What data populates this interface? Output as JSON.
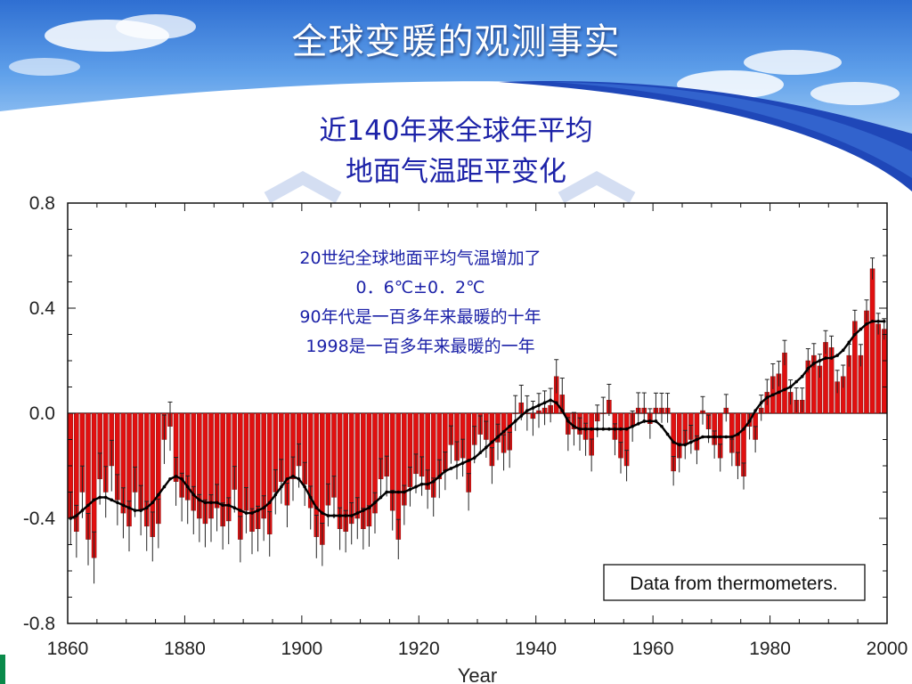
{
  "slide": {
    "title": "全球变暖的观测事实",
    "subtitle_line1": "近140年来全球年平均",
    "subtitle_line2": "地面气温距平变化"
  },
  "colors": {
    "bar": "#e01010",
    "bar_edge": "#7a0000",
    "smooth_line": "#000000",
    "note_text": "#1c22a8",
    "header_blue": "#1f47b8"
  },
  "chart_data": {
    "type": "bar",
    "title": "",
    "xlabel": "Year",
    "ylabel": "",
    "xlim": [
      1860,
      2000
    ],
    "ylim": [
      -0.8,
      0.8
    ],
    "x_ticks": [
      "1860",
      "1880",
      "1900",
      "1920",
      "1940",
      "1960",
      "1980",
      "2000"
    ],
    "y_ticks": [
      "0.8",
      "0.4",
      "0.0",
      "-0.4",
      "-0.8"
    ],
    "years": [
      1861,
      1862,
      1863,
      1864,
      1865,
      1866,
      1867,
      1868,
      1869,
      1870,
      1871,
      1872,
      1873,
      1874,
      1875,
      1876,
      1877,
      1878,
      1879,
      1880,
      1881,
      1882,
      1883,
      1884,
      1885,
      1886,
      1887,
      1888,
      1889,
      1890,
      1891,
      1892,
      1893,
      1894,
      1895,
      1896,
      1897,
      1898,
      1899,
      1900,
      1901,
      1902,
      1903,
      1904,
      1905,
      1906,
      1907,
      1908,
      1909,
      1910,
      1911,
      1912,
      1913,
      1914,
      1915,
      1916,
      1917,
      1918,
      1919,
      1920,
      1921,
      1922,
      1923,
      1924,
      1925,
      1926,
      1927,
      1928,
      1929,
      1930,
      1931,
      1932,
      1933,
      1934,
      1935,
      1936,
      1937,
      1938,
      1939,
      1940,
      1941,
      1942,
      1943,
      1944,
      1945,
      1946,
      1947,
      1948,
      1949,
      1950,
      1951,
      1952,
      1953,
      1954,
      1955,
      1956,
      1957,
      1958,
      1959,
      1960,
      1961,
      1962,
      1963,
      1964,
      1965,
      1966,
      1967,
      1968,
      1969,
      1970,
      1971,
      1972,
      1973,
      1974,
      1975,
      1976,
      1977,
      1978,
      1979,
      1980,
      1981,
      1982,
      1983,
      1984,
      1985,
      1986,
      1987,
      1988,
      1989,
      1990,
      1991,
      1992,
      1993,
      1994,
      1995,
      1996,
      1997,
      1998,
      1999,
      2000
    ],
    "values": [
      -0.4,
      -0.45,
      -0.3,
      -0.48,
      -0.55,
      -0.25,
      -0.3,
      -0.2,
      -0.33,
      -0.38,
      -0.43,
      -0.3,
      -0.37,
      -0.43,
      -0.47,
      -0.42,
      -0.1,
      -0.05,
      -0.26,
      -0.32,
      -0.33,
      -0.37,
      -0.4,
      -0.42,
      -0.4,
      -0.36,
      -0.43,
      -0.41,
      -0.29,
      -0.48,
      -0.37,
      -0.45,
      -0.44,
      -0.4,
      -0.46,
      -0.3,
      -0.26,
      -0.35,
      -0.25,
      -0.2,
      -0.27,
      -0.36,
      -0.47,
      -0.5,
      -0.35,
      -0.32,
      -0.44,
      -0.45,
      -0.42,
      -0.4,
      -0.44,
      -0.43,
      -0.38,
      -0.25,
      -0.24,
      -0.37,
      -0.48,
      -0.35,
      -0.28,
      -0.23,
      -0.24,
      -0.29,
      -0.32,
      -0.25,
      -0.22,
      -0.12,
      -0.18,
      -0.17,
      -0.3,
      -0.12,
      -0.08,
      -0.1,
      -0.2,
      -0.11,
      -0.15,
      -0.14,
      0.0,
      0.04,
      0.0,
      -0.02,
      0.01,
      0.02,
      0.03,
      0.14,
      0.07,
      -0.08,
      -0.06,
      -0.08,
      -0.1,
      -0.16,
      -0.03,
      0.0,
      0.05,
      -0.1,
      -0.17,
      -0.2,
      -0.05,
      0.02,
      0.02,
      -0.04,
      0.02,
      0.02,
      0.02,
      -0.22,
      -0.17,
      -0.12,
      -0.1,
      -0.14,
      0.01,
      -0.06,
      -0.12,
      -0.17,
      0.02,
      -0.15,
      -0.2,
      -0.24,
      -0.05,
      -0.1,
      0.02,
      0.08,
      0.14,
      0.15,
      0.23,
      0.08,
      0.05,
      0.05,
      0.2,
      0.22,
      0.18,
      0.27,
      0.25,
      0.12,
      0.14,
      0.22,
      0.35,
      0.22,
      0.39,
      0.55,
      0.34,
      0.32
    ],
    "smoothed": [
      -0.4,
      -0.39,
      -0.37,
      -0.35,
      -0.33,
      -0.32,
      -0.32,
      -0.33,
      -0.34,
      -0.35,
      -0.36,
      -0.37,
      -0.37,
      -0.36,
      -0.34,
      -0.31,
      -0.28,
      -0.25,
      -0.24,
      -0.25,
      -0.28,
      -0.31,
      -0.33,
      -0.34,
      -0.34,
      -0.34,
      -0.35,
      -0.35,
      -0.36,
      -0.37,
      -0.38,
      -0.38,
      -0.37,
      -0.36,
      -0.34,
      -0.31,
      -0.28,
      -0.25,
      -0.24,
      -0.25,
      -0.28,
      -0.32,
      -0.36,
      -0.38,
      -0.39,
      -0.39,
      -0.39,
      -0.39,
      -0.39,
      -0.38,
      -0.37,
      -0.36,
      -0.34,
      -0.32,
      -0.3,
      -0.3,
      -0.3,
      -0.3,
      -0.29,
      -0.28,
      -0.27,
      -0.27,
      -0.26,
      -0.24,
      -0.22,
      -0.21,
      -0.2,
      -0.19,
      -0.18,
      -0.17,
      -0.15,
      -0.13,
      -0.11,
      -0.09,
      -0.07,
      -0.05,
      -0.03,
      -0.01,
      0.01,
      0.02,
      0.03,
      0.04,
      0.05,
      0.04,
      0.01,
      -0.03,
      -0.05,
      -0.06,
      -0.06,
      -0.06,
      -0.06,
      -0.06,
      -0.06,
      -0.06,
      -0.06,
      -0.06,
      -0.05,
      -0.04,
      -0.03,
      -0.03,
      -0.03,
      -0.05,
      -0.08,
      -0.11,
      -0.12,
      -0.12,
      -0.11,
      -0.1,
      -0.09,
      -0.09,
      -0.09,
      -0.09,
      -0.09,
      -0.09,
      -0.08,
      -0.06,
      -0.03,
      0.01,
      0.04,
      0.06,
      0.07,
      0.08,
      0.09,
      0.1,
      0.12,
      0.14,
      0.17,
      0.19,
      0.2,
      0.21,
      0.21,
      0.22,
      0.24,
      0.27,
      0.3,
      0.32,
      0.34,
      0.35,
      0.35,
      0.35
    ]
  },
  "annotation": {
    "line1": "20世纪全球地面平均气温增加了",
    "line2": "0．6℃±0．2℃",
    "line3": "90年代是一百多年来最暖的十年",
    "line4": "1998是一百多年来最暖的一年"
  },
  "legend": {
    "text": "Data from thermometers."
  }
}
